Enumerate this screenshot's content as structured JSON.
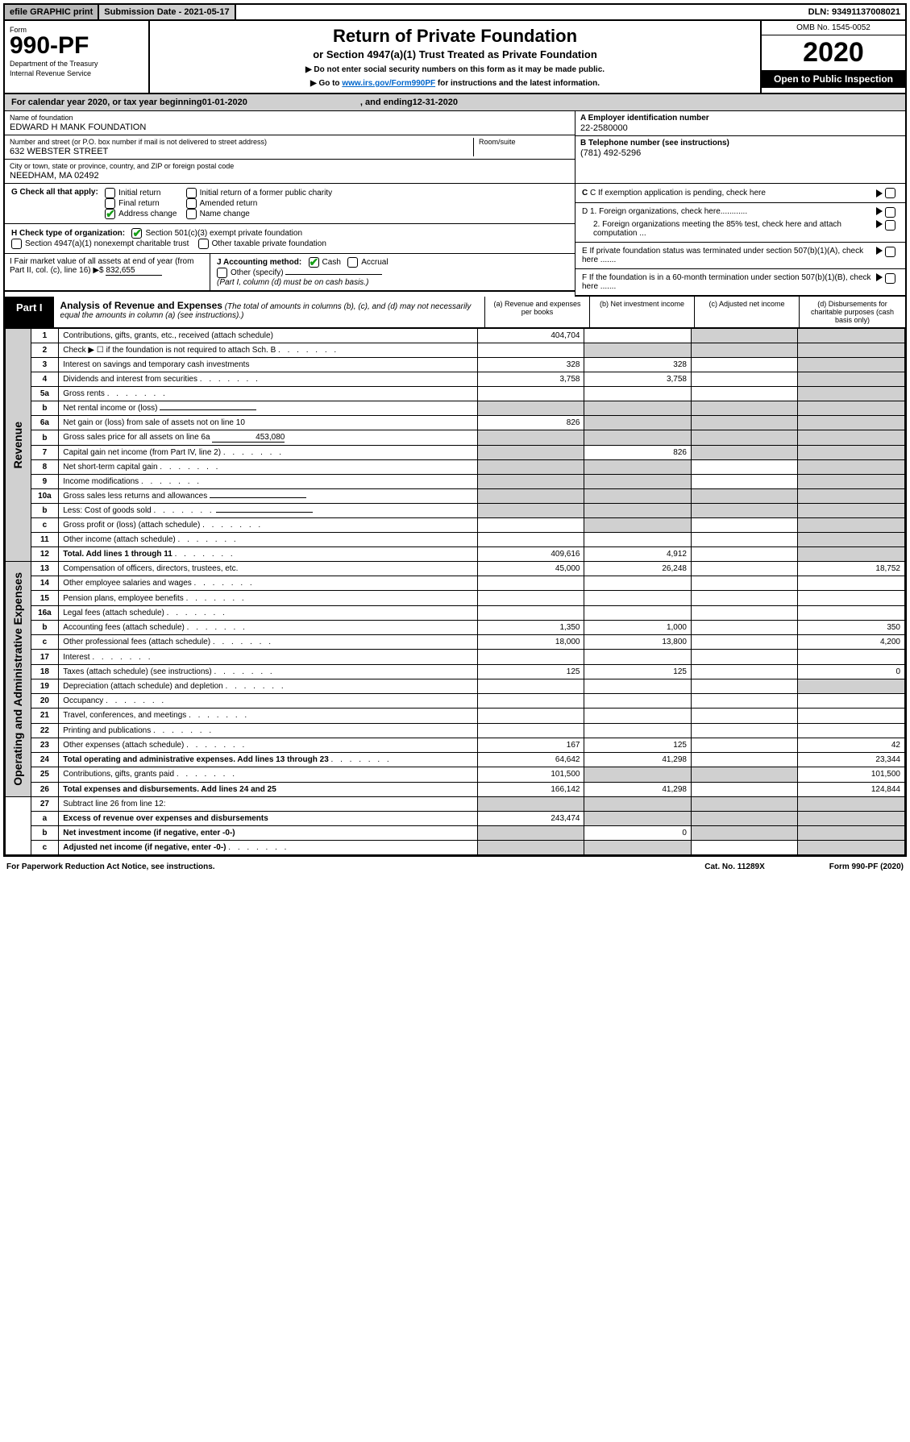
{
  "topbar": {
    "efile": "efile GRAPHIC print",
    "sub": "Submission Date - 2021-05-17",
    "dln": "DLN: 93491137008021"
  },
  "header": {
    "form_label": "Form",
    "form_no": "990-PF",
    "dept1": "Department of the Treasury",
    "dept2": "Internal Revenue Service",
    "title": "Return of Private Foundation",
    "subtitle": "or Section 4947(a)(1) Trust Treated as Private Foundation",
    "instr1": "▶ Do not enter social security numbers on this form as it may be made public.",
    "instr2_pre": "▶ Go to ",
    "instr2_link": "www.irs.gov/Form990PF",
    "instr2_post": " for instructions and the latest information.",
    "omb": "OMB No. 1545-0052",
    "year": "2020",
    "open": "Open to Public Inspection"
  },
  "cal": {
    "begin_label": "For calendar year 2020, or tax year beginning ",
    "begin": "01-01-2020",
    "end_label": ", and ending ",
    "end": "12-31-2020"
  },
  "meta": {
    "name_lbl": "Name of foundation",
    "name": "EDWARD H MANK FOUNDATION",
    "addr_lbl": "Number and street (or P.O. box number if mail is not delivered to street address)",
    "addr": "632 WEBSTER STREET",
    "room_lbl": "Room/suite",
    "city_lbl": "City or town, state or province, country, and ZIP or foreign postal code",
    "city": "NEEDHAM, MA  02492",
    "a_lbl": "A Employer identification number",
    "a": "22-2580000",
    "b_lbl": "B Telephone number (see instructions)",
    "b": "(781) 492-5296",
    "c_lbl": "C If exemption application is pending, check here",
    "d1": "D 1. Foreign organizations, check here............",
    "d2": "2. Foreign organizations meeting the 85% test, check here and attach computation ...",
    "e": "E  If private foundation status was terminated under section 507(b)(1)(A), check here .......",
    "f": "F  If the foundation is in a 60-month termination under section 507(b)(1)(B), check here .......",
    "g_lbl": "G Check all that apply:",
    "g_opts": [
      "Initial return",
      "Final return",
      "Address change",
      "Initial return of a former public charity",
      "Amended return",
      "Name change"
    ],
    "h_lbl": "H Check type of organization:",
    "h1": "Section 501(c)(3) exempt private foundation",
    "h2": "Section 4947(a)(1) nonexempt charitable trust",
    "h3": "Other taxable private foundation",
    "i_lbl": "I Fair market value of all assets at end of year (from Part II, col. (c), line 16) ▶$",
    "i_val": "832,655",
    "j_lbl": "J Accounting method:",
    "j_cash": "Cash",
    "j_accrual": "Accrual",
    "j_other": "Other (specify)",
    "j_note": "(Part I, column (d) must be on cash basis.)"
  },
  "part1": {
    "tag": "Part I",
    "title": "Analysis of Revenue and Expenses",
    "paren": "(The total of amounts in columns (b), (c), and (d) may not necessarily equal the amounts in column (a) (see instructions).)",
    "ca": "(a)   Revenue and expenses per books",
    "cb": "(b)   Net investment income",
    "cc": "(c)   Adjusted net income",
    "cd": "(d)   Disbursements for charitable purposes (cash basis only)"
  },
  "side_rev": "Revenue",
  "side_exp": "Operating and Administrative Expenses",
  "rows": [
    {
      "n": "1",
      "d": "Contributions, gifts, grants, etc., received (attach schedule)",
      "a": "404,704",
      "b": "",
      "c": "sh",
      "dd": "sh"
    },
    {
      "n": "2",
      "d": "Check ▶ ☐ if the foundation is not required to attach Sch. B",
      "a": "",
      "b": "sh",
      "c": "sh",
      "dd": "sh",
      "dot": 1
    },
    {
      "n": "3",
      "d": "Interest on savings and temporary cash investments",
      "a": "328",
      "b": "328",
      "c": "",
      "dd": "sh"
    },
    {
      "n": "4",
      "d": "Dividends and interest from securities",
      "a": "3,758",
      "b": "3,758",
      "c": "",
      "dd": "sh",
      "dot": 1
    },
    {
      "n": "5a",
      "d": "Gross rents",
      "a": "",
      "b": "",
      "c": "",
      "dd": "sh",
      "dot": 1
    },
    {
      "n": "b",
      "d": "Net rental income or (loss)",
      "a": "sh",
      "b": "sh",
      "c": "sh",
      "dd": "sh",
      "under": 1
    },
    {
      "n": "6a",
      "d": "Net gain or (loss) from sale of assets not on line 10",
      "a": "826",
      "b": "sh",
      "c": "sh",
      "dd": "sh"
    },
    {
      "n": "b",
      "d": "Gross sales price for all assets on line 6a",
      "a": "sh",
      "b": "sh",
      "c": "sh",
      "dd": "sh",
      "inline": "453,080"
    },
    {
      "n": "7",
      "d": "Capital gain net income (from Part IV, line 2)",
      "a": "sh",
      "b": "826",
      "c": "sh",
      "dd": "sh",
      "dot": 1
    },
    {
      "n": "8",
      "d": "Net short-term capital gain",
      "a": "sh",
      "b": "sh",
      "c": "",
      "dd": "sh",
      "dot": 1
    },
    {
      "n": "9",
      "d": "Income modifications",
      "a": "sh",
      "b": "sh",
      "c": "",
      "dd": "sh",
      "dot": 1
    },
    {
      "n": "10a",
      "d": "Gross sales less returns and allowances",
      "a": "sh",
      "b": "sh",
      "c": "sh",
      "dd": "sh",
      "under": 1
    },
    {
      "n": "b",
      "d": "Less: Cost of goods sold",
      "a": "sh",
      "b": "sh",
      "c": "sh",
      "dd": "sh",
      "dot": 1,
      "under": 1
    },
    {
      "n": "c",
      "d": "Gross profit or (loss) (attach schedule)",
      "a": "",
      "b": "sh",
      "c": "",
      "dd": "sh",
      "dot": 1
    },
    {
      "n": "11",
      "d": "Other income (attach schedule)",
      "a": "",
      "b": "",
      "c": "",
      "dd": "sh",
      "dot": 1
    },
    {
      "n": "12",
      "d": "Total. Add lines 1 through 11",
      "a": "409,616",
      "b": "4,912",
      "c": "",
      "dd": "sh",
      "dot": 1,
      "bold": 1
    }
  ],
  "rows2": [
    {
      "n": "13",
      "d": "Compensation of officers, directors, trustees, etc.",
      "a": "45,000",
      "b": "26,248",
      "c": "",
      "dd": "18,752"
    },
    {
      "n": "14",
      "d": "Other employee salaries and wages",
      "a": "",
      "b": "",
      "c": "",
      "dd": "",
      "dot": 1
    },
    {
      "n": "15",
      "d": "Pension plans, employee benefits",
      "a": "",
      "b": "",
      "c": "",
      "dd": "",
      "dot": 1
    },
    {
      "n": "16a",
      "d": "Legal fees (attach schedule)",
      "a": "",
      "b": "",
      "c": "",
      "dd": "",
      "dot": 1
    },
    {
      "n": "b",
      "d": "Accounting fees (attach schedule)",
      "a": "1,350",
      "b": "1,000",
      "c": "",
      "dd": "350",
      "dot": 1
    },
    {
      "n": "c",
      "d": "Other professional fees (attach schedule)",
      "a": "18,000",
      "b": "13,800",
      "c": "",
      "dd": "4,200",
      "dot": 1
    },
    {
      "n": "17",
      "d": "Interest",
      "a": "",
      "b": "",
      "c": "",
      "dd": "",
      "dot": 1
    },
    {
      "n": "18",
      "d": "Taxes (attach schedule) (see instructions)",
      "a": "125",
      "b": "125",
      "c": "",
      "dd": "0",
      "dot": 1
    },
    {
      "n": "19",
      "d": "Depreciation (attach schedule) and depletion",
      "a": "",
      "b": "",
      "c": "",
      "dd": "sh",
      "dot": 1
    },
    {
      "n": "20",
      "d": "Occupancy",
      "a": "",
      "b": "",
      "c": "",
      "dd": "",
      "dot": 1
    },
    {
      "n": "21",
      "d": "Travel, conferences, and meetings",
      "a": "",
      "b": "",
      "c": "",
      "dd": "",
      "dot": 1
    },
    {
      "n": "22",
      "d": "Printing and publications",
      "a": "",
      "b": "",
      "c": "",
      "dd": "",
      "dot": 1
    },
    {
      "n": "23",
      "d": "Other expenses (attach schedule)",
      "a": "167",
      "b": "125",
      "c": "",
      "dd": "42",
      "dot": 1
    },
    {
      "n": "24",
      "d": "Total operating and administrative expenses. Add lines 13 through 23",
      "a": "64,642",
      "b": "41,298",
      "c": "",
      "dd": "23,344",
      "dot": 1,
      "bold": 1
    },
    {
      "n": "25",
      "d": "Contributions, gifts, grants paid",
      "a": "101,500",
      "b": "sh",
      "c": "sh",
      "dd": "101,500",
      "dot": 1
    },
    {
      "n": "26",
      "d": "Total expenses and disbursements. Add lines 24 and 25",
      "a": "166,142",
      "b": "41,298",
      "c": "",
      "dd": "124,844",
      "bold": 1
    }
  ],
  "rows3": [
    {
      "n": "27",
      "d": "Subtract line 26 from line 12:",
      "a": "sh",
      "b": "sh",
      "c": "sh",
      "dd": "sh"
    },
    {
      "n": "a",
      "d": "Excess of revenue over expenses and disbursements",
      "a": "243,474",
      "b": "sh",
      "c": "sh",
      "dd": "sh",
      "bold": 1
    },
    {
      "n": "b",
      "d": "Net investment income (if negative, enter -0-)",
      "a": "sh",
      "b": "0",
      "c": "sh",
      "dd": "sh",
      "bold": 1
    },
    {
      "n": "c",
      "d": "Adjusted net income (if negative, enter -0-)",
      "a": "sh",
      "b": "sh",
      "c": "",
      "dd": "sh",
      "bold": 1,
      "dot": 1
    }
  ],
  "footer": {
    "paperwork": "For Paperwork Reduction Act Notice, see instructions.",
    "cat": "Cat. No. 11289X",
    "form": "Form 990-PF (2020)"
  }
}
